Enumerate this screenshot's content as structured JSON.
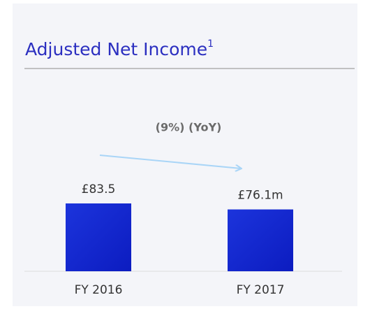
{
  "chart_data": {
    "type": "bar",
    "title": "Adjusted Net Income",
    "title_footnote": "1",
    "annotation": "(9%) (YoY)",
    "categories": [
      "FY 2016",
      "FY 2017"
    ],
    "values": [
      83.5,
      76.1
    ],
    "value_labels": [
      "£83.5",
      "£76.1m"
    ],
    "color": "#1228d0"
  }
}
